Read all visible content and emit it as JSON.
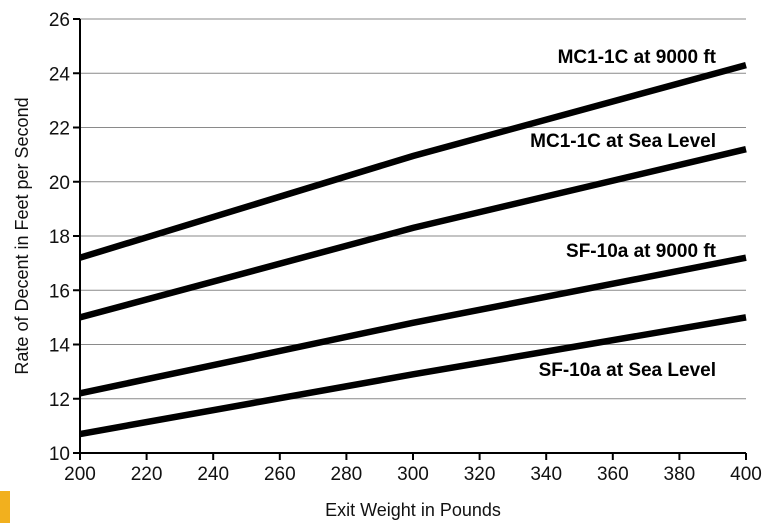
{
  "chart_data": {
    "type": "line",
    "xlabel": "Exit Weight in Pounds",
    "ylabel": "Rate of Decent in Feet per Second",
    "xlim": [
      200,
      400
    ],
    "ylim": [
      10,
      26
    ],
    "xticks": [
      200,
      220,
      240,
      260,
      280,
      300,
      320,
      340,
      360,
      380,
      400
    ],
    "yticks": [
      10,
      12,
      14,
      16,
      18,
      20,
      22,
      24,
      26
    ],
    "grid": "horizontal",
    "series": [
      {
        "name": "MC1-1C at 9000 ft",
        "x": [
          200,
          300,
          400
        ],
        "y": [
          17.2,
          20.95,
          24.3
        ]
      },
      {
        "name": "MC1-1C at Sea Level",
        "x": [
          200,
          300,
          400
        ],
        "y": [
          15.0,
          18.3,
          21.2
        ]
      },
      {
        "name": "SF-10a at 9000 ft",
        "x": [
          200,
          300,
          400
        ],
        "y": [
          12.2,
          14.8,
          17.2
        ]
      },
      {
        "name": "SF-10a at Sea Level",
        "x": [
          200,
          300,
          400
        ],
        "y": [
          10.7,
          12.9,
          15.0
        ]
      }
    ],
    "line_color": "#000000",
    "accent_color": "#f2b01e"
  }
}
